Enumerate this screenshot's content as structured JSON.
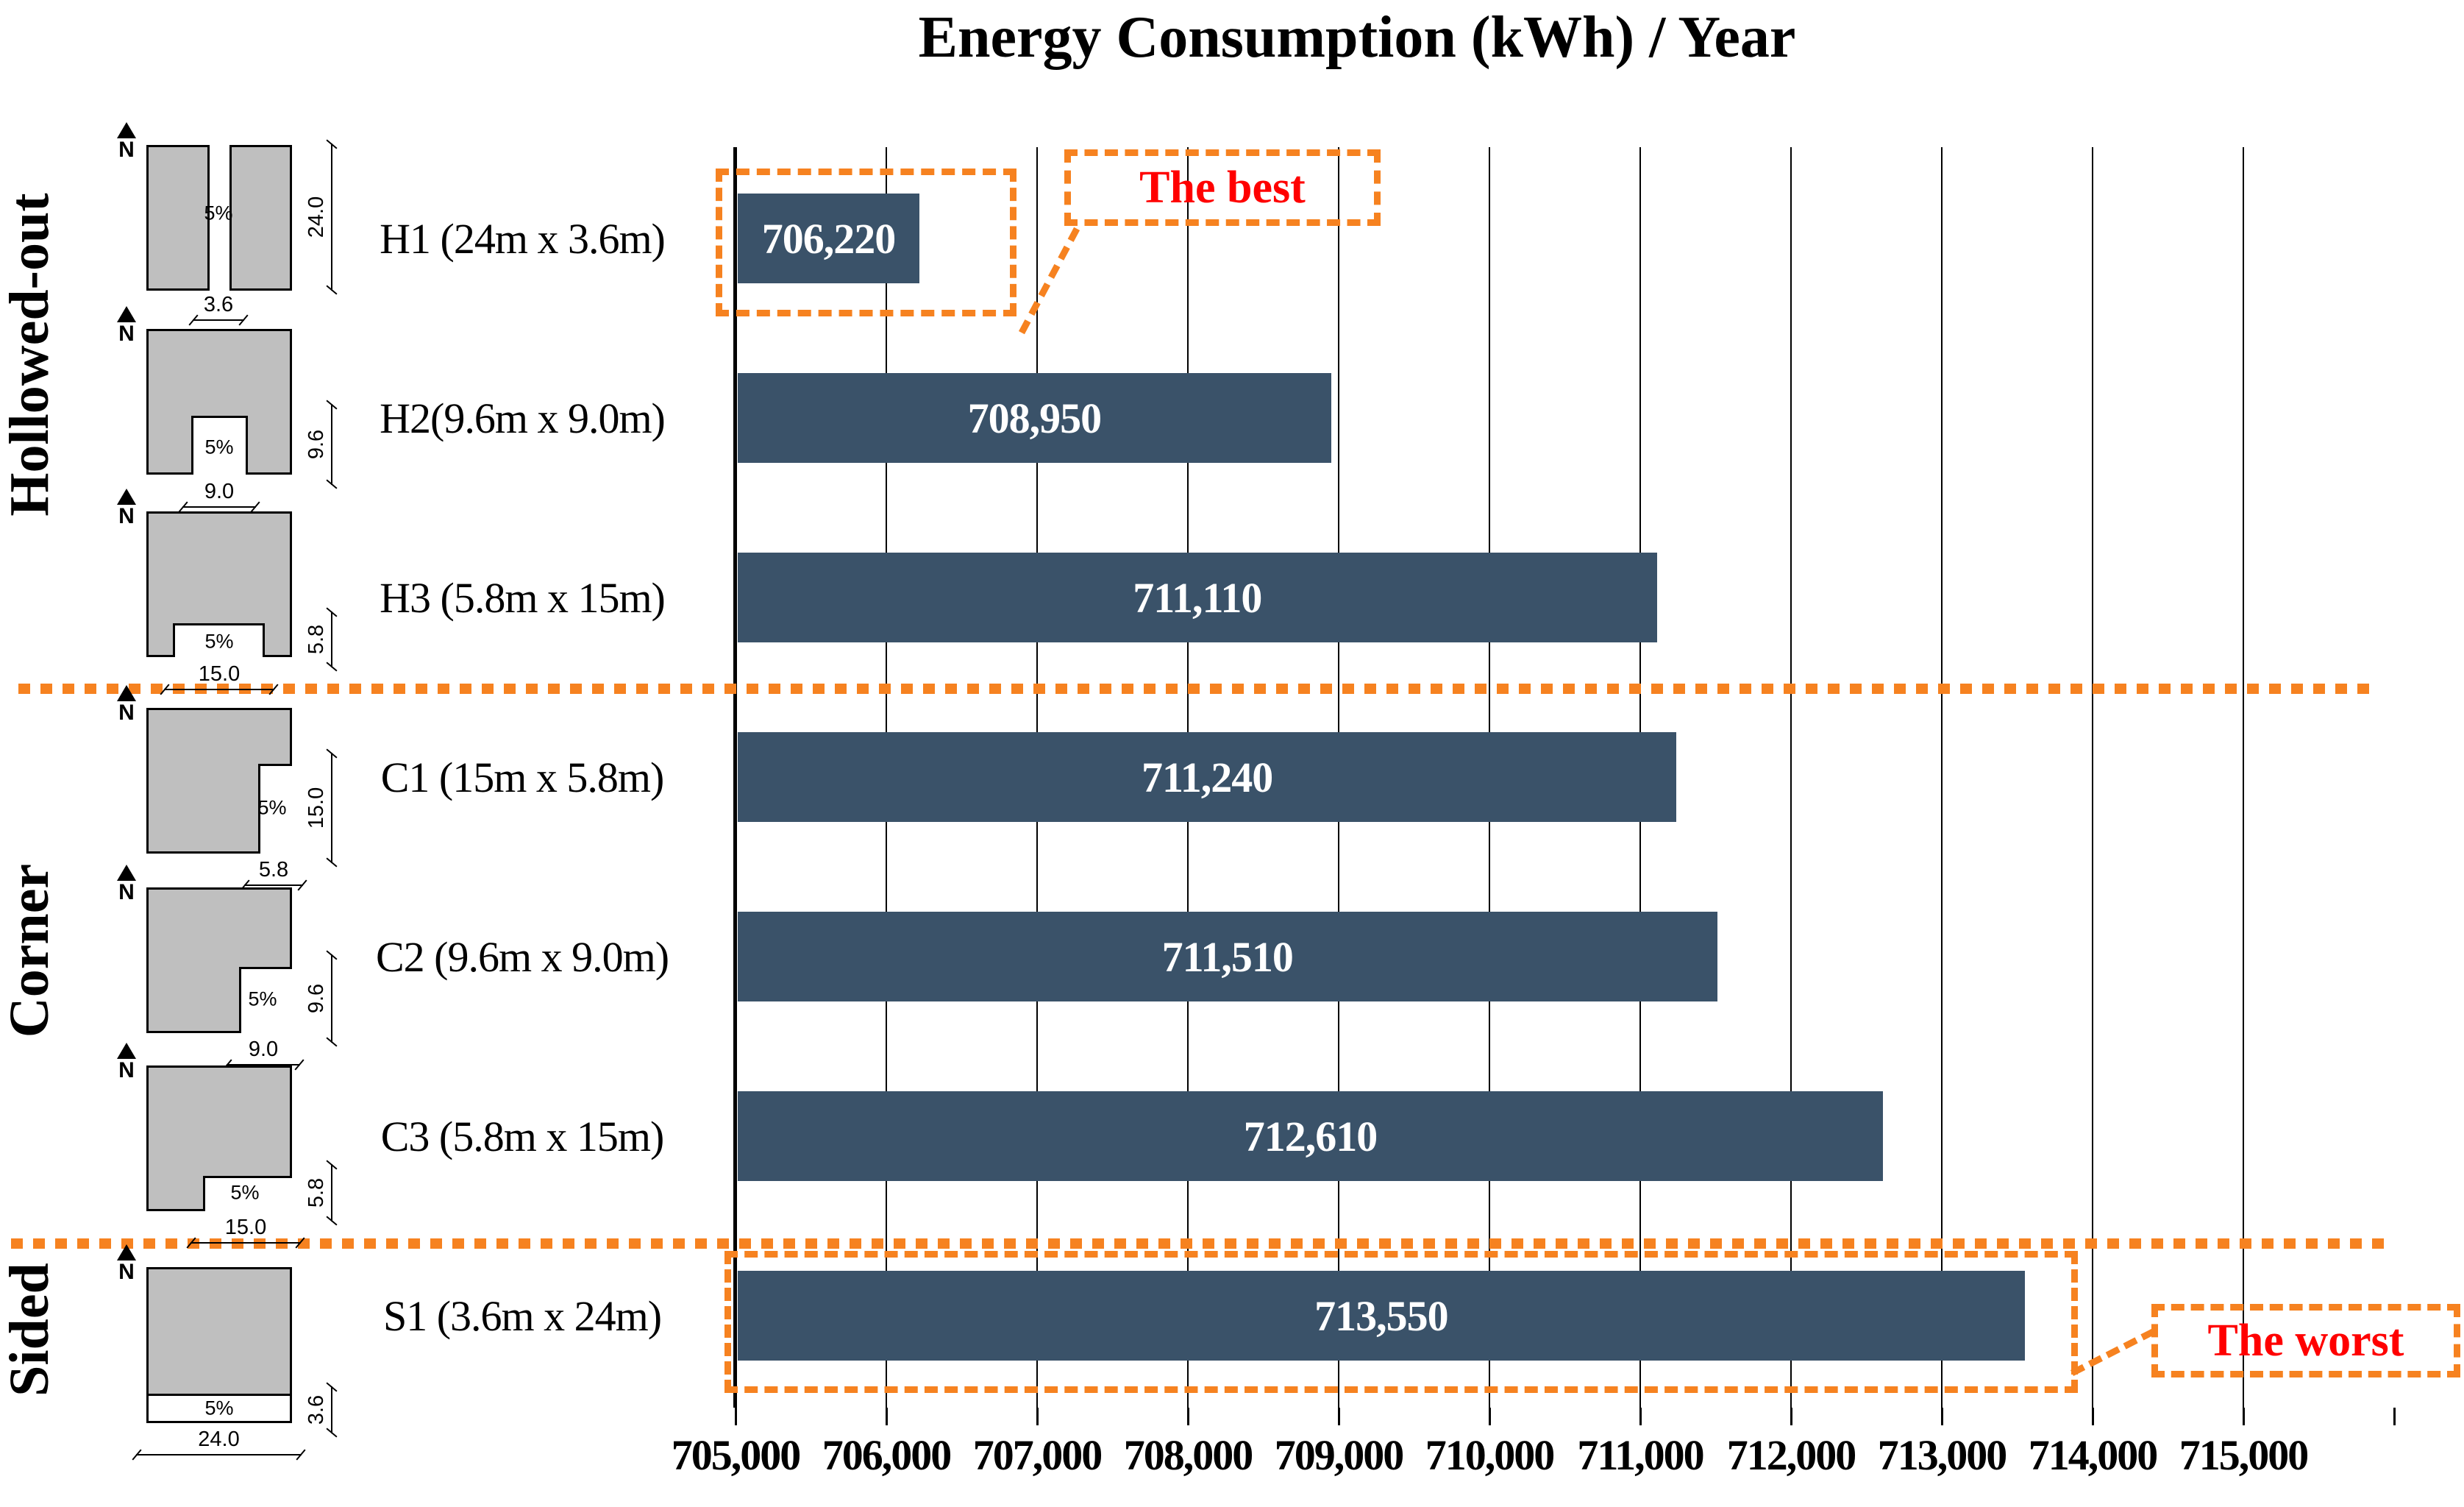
{
  "title": "Energy Consumption (kWh) / Year",
  "chart_data": {
    "type": "bar",
    "orientation": "horizontal",
    "title": "Energy Consumption (kWh) / Year",
    "grid": "vertical gridlines every 1,000 kWh",
    "legend_position": "none",
    "x_axis": {
      "min": 705000,
      "max": 716000,
      "step": 1000,
      "tick_labels": [
        "705,000",
        "706,000",
        "707,000",
        "708,000",
        "709,000",
        "710,000",
        "711,000",
        "712,000",
        "713,000",
        "714,000",
        "715,000"
      ]
    },
    "categories": [
      "H1 (24m x 3.6m)",
      "H2(9.6m x 9.0m)",
      "H3 (5.8m x 15m)",
      "C1 (15m x 5.8m)",
      "C2 (9.6m x 9.0m)",
      "C3 (5.8m x 15m)",
      "S1 (3.6m x 24m)"
    ],
    "values": [
      706220,
      708950,
      711110,
      711240,
      711510,
      712610,
      713550
    ],
    "value_labels": [
      "706,220",
      "708,950",
      "711,110",
      "711,240",
      "711,510",
      "712,610",
      "713,550"
    ],
    "groups": [
      {
        "label": "Hollowed-out",
        "rows": [
          "H1",
          "H2",
          "H3"
        ]
      },
      {
        "label": "Corner",
        "rows": [
          "C1",
          "C2",
          "C3"
        ]
      },
      {
        "label": "Sided",
        "rows": [
          "S1"
        ]
      }
    ],
    "annotations": [
      {
        "text": "The best",
        "target": "H1"
      },
      {
        "text": "The worst",
        "target": "S1"
      }
    ]
  },
  "colors": {
    "bar": "#3A5269",
    "accent_orange": "#F68220",
    "annotation_red": "#FF0000",
    "diagram_gray": "#BFBFBF"
  },
  "diagrams": [
    {
      "name": "H1",
      "north": "N",
      "void_label": "5%",
      "bottom_dim": "3.6",
      "side_dim": "24.0"
    },
    {
      "name": "H2",
      "north": "N",
      "void_label": "5%",
      "bottom_dim": "9.0",
      "side_dim": "9.6"
    },
    {
      "name": "H3",
      "north": "N",
      "void_label": "5%",
      "bottom_dim": "15.0",
      "side_dim": "5.8"
    },
    {
      "name": "C1",
      "north": "N",
      "void_label": "5%",
      "bottom_dim": "5.8",
      "side_dim": "15.0"
    },
    {
      "name": "C2",
      "north": "N",
      "void_label": "5%",
      "bottom_dim": "9.0",
      "side_dim": "9.6"
    },
    {
      "name": "C3",
      "north": "N",
      "void_label": "5%",
      "bottom_dim": "15.0",
      "side_dim": "5.8"
    },
    {
      "name": "S1",
      "north": "N",
      "void_label": "5%",
      "bottom_dim": "24.0",
      "side_dim": "3.6"
    }
  ]
}
